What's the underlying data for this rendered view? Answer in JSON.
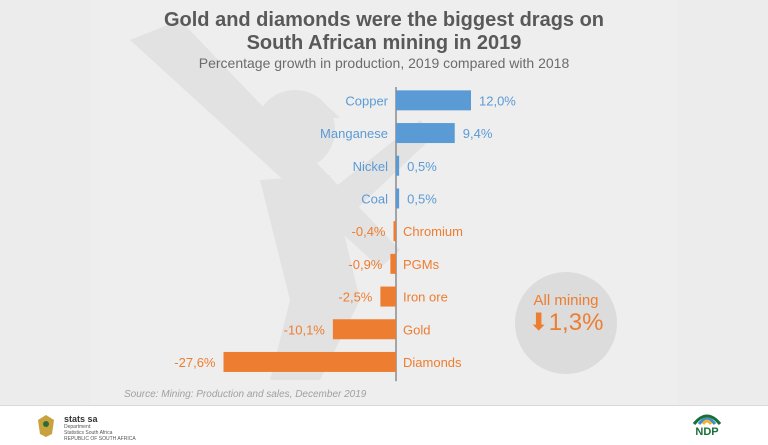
{
  "header": {
    "title_line1": "Gold and diamonds were the biggest drags on",
    "title_line2": "South African mining in 2019",
    "subtitle": "Percentage growth in production, 2019 compared with 2018"
  },
  "colors": {
    "positive": "#5b9bd5",
    "negative": "#ed7d31",
    "axis": "#8c8c8c",
    "title": "#595959"
  },
  "chart_data": {
    "type": "bar",
    "orientation": "horizontal",
    "title": "Gold and diamonds were the biggest drags on South African mining in 2019",
    "subtitle": "Percentage growth in production, 2019 compared with 2018",
    "categories": [
      "Copper",
      "Manganese",
      "Nickel",
      "Coal",
      "Chromium",
      "PGMs",
      "Iron ore",
      "Gold",
      "Diamonds"
    ],
    "values": [
      12.0,
      9.4,
      0.5,
      0.5,
      -0.4,
      -0.9,
      -2.5,
      -10.1,
      -27.6
    ],
    "value_labels": [
      "12,0%",
      "9,4%",
      "0,5%",
      "0,5%",
      "-0,4%",
      "-0,9%",
      "-2,5%",
      "-10,1%",
      "-27,6%"
    ],
    "xlim": [
      -27.6,
      12.0
    ],
    "unit": "%",
    "grid": false,
    "legend": "none"
  },
  "summary": {
    "label": "All mining",
    "arrow": "⬇",
    "value": "1,3%"
  },
  "source": "Source: Mining: Production and sales, December 2019",
  "footer": {
    "org_name": "stats sa",
    "org_line1": "Department:",
    "org_line2": "Statistics South Africa",
    "org_line3": "REPUBLIC OF SOUTH AFRICA",
    "right_logo_text": "NDP"
  }
}
